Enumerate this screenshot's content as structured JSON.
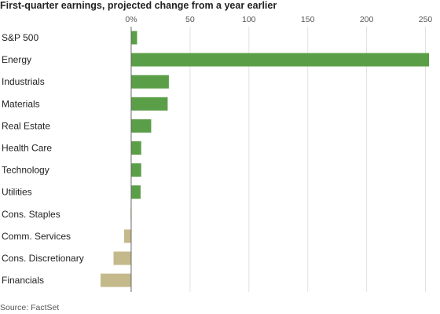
{
  "chart_data": {
    "type": "bar",
    "orientation": "horizontal",
    "title": "First-quarter earnings, projected change from a year earlier",
    "source": "Source: FactSet",
    "categories": [
      "S&P 500",
      "Energy",
      "Industrials",
      "Materials",
      "Real Estate",
      "Health Care",
      "Technology",
      "Utilities",
      "Cons. Staples",
      "Comm. Services",
      "Cons. Discretionary",
      "Financials"
    ],
    "values": [
      5,
      253,
      32,
      31,
      17,
      8.5,
      8.5,
      8,
      -0.5,
      -6,
      -15,
      -26
    ],
    "xlim": [
      -26,
      253
    ],
    "xticks": [
      0,
      50,
      100,
      150,
      200,
      250
    ],
    "xtick_labels": [
      "0%",
      "50",
      "100",
      "150",
      "200",
      "250"
    ],
    "grid": true,
    "colors": {
      "positive": "#5a9e47",
      "negative": "#c4b98a",
      "grid": "#e2e2e2",
      "axis": "#666666"
    }
  }
}
